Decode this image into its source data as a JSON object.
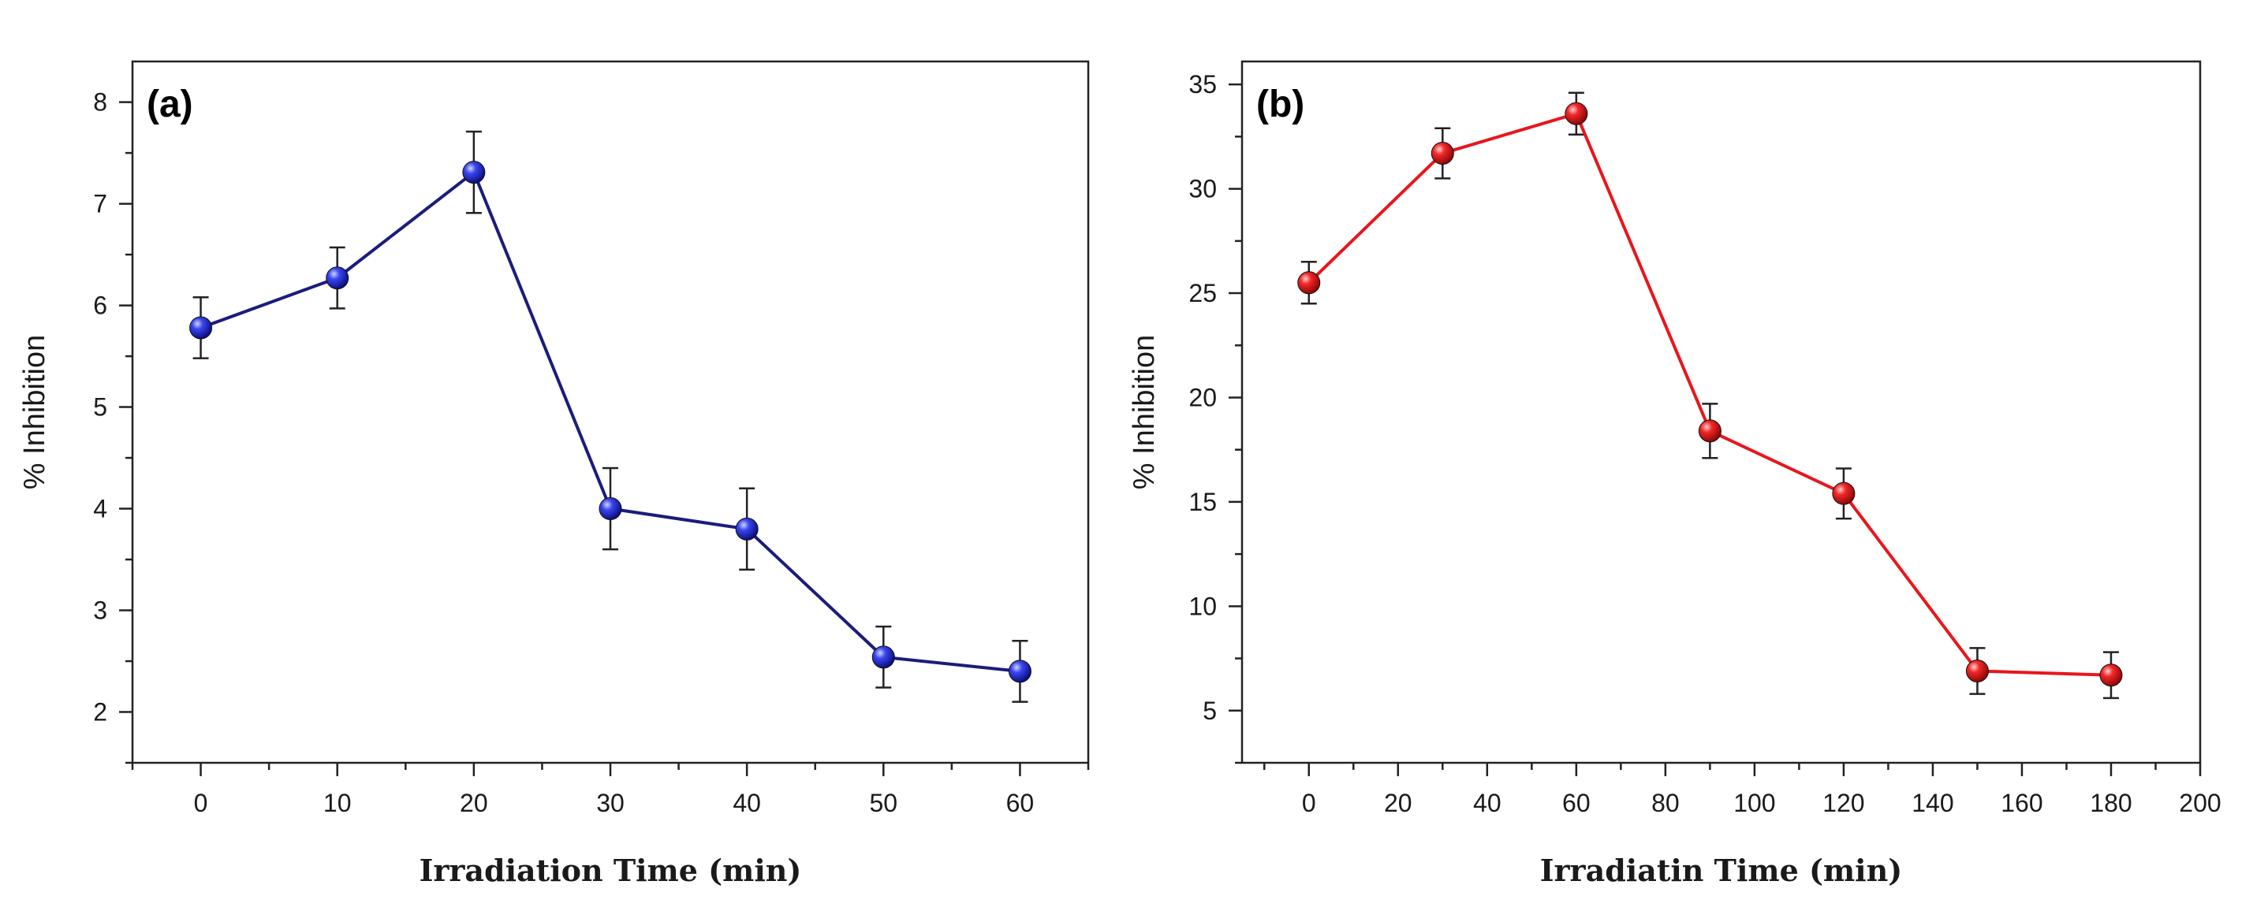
{
  "chart_data": [
    {
      "type": "line",
      "panel_label": "(a)",
      "xlabel": "Irradiation Time (min)",
      "ylabel": "% Inhibition",
      "xlim": [
        -5,
        65
      ],
      "ylim": [
        1.5,
        8.4
      ],
      "xticks": [
        0,
        10,
        20,
        30,
        40,
        50,
        60
      ],
      "yticks": [
        2,
        3,
        4,
        5,
        6,
        7,
        8
      ],
      "color": "#1c1c7c",
      "marker_color": "#1e22d8",
      "series": [
        {
          "x": [
            0,
            10,
            20,
            30,
            40,
            50,
            60
          ],
          "y": [
            5.78,
            6.27,
            7.31,
            4.0,
            3.8,
            2.54,
            2.4
          ],
          "error": [
            0.3,
            0.3,
            0.4,
            0.4,
            0.4,
            0.3,
            0.3
          ]
        }
      ]
    },
    {
      "type": "line",
      "panel_label": "(b)",
      "xlabel": "Irradiatin Time (min)",
      "ylabel": "% Inhibition",
      "xlim": [
        -15,
        200
      ],
      "ylim": [
        2.5,
        36.1
      ],
      "xticks": [
        0,
        20,
        40,
        60,
        80,
        100,
        120,
        140,
        160,
        180,
        200
      ],
      "yticks": [
        5,
        10,
        15,
        20,
        25,
        30,
        35
      ],
      "color": "#e8161c",
      "marker_color": "#e8161c",
      "series": [
        {
          "x": [
            0,
            30,
            60,
            90,
            120,
            150,
            180
          ],
          "y": [
            25.5,
            31.7,
            33.6,
            18.4,
            15.4,
            6.9,
            6.7
          ],
          "error": [
            1.0,
            1.2,
            1.0,
            1.3,
            1.2,
            1.1,
            1.1
          ]
        }
      ]
    }
  ]
}
